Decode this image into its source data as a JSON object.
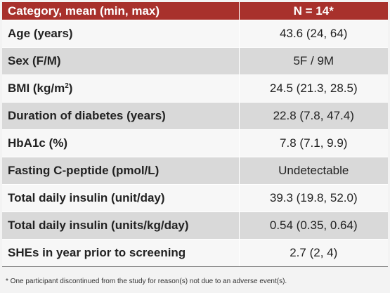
{
  "table": {
    "headers": [
      "Category, mean (min, max)",
      "N = 14*"
    ],
    "rows": [
      {
        "label": "Age (years)",
        "value": "43.6 (24, 64)"
      },
      {
        "label": "Sex (F/M)",
        "value": "5F / 9M"
      },
      {
        "label": "BMI (kg/m",
        "label_sup": "2",
        "label_after": ")",
        "value": "24.5 (21.3, 28.5)"
      },
      {
        "label": "Duration of diabetes (years)",
        "value": "22.8 (7.8, 47.4)"
      },
      {
        "label": "HbA1c (%)",
        "value": "7.8 (7.1, 9.9)"
      },
      {
        "label": "Fasting C-peptide (pmol/L)",
        "value": "Undetectable"
      },
      {
        "label": "Total daily insulin (unit/day)",
        "value": "39.3 (19.8, 52.0)"
      },
      {
        "label": "Total daily insulin (units/kg/day)",
        "value": "0.54 (0.35, 0.64)"
      },
      {
        "label": "SHEs in year prior to screening",
        "value": "2.7 (2, 4)"
      }
    ]
  },
  "footnote": "* One participant discontinued from the study for reason(s) not due to an adverse event(s)."
}
